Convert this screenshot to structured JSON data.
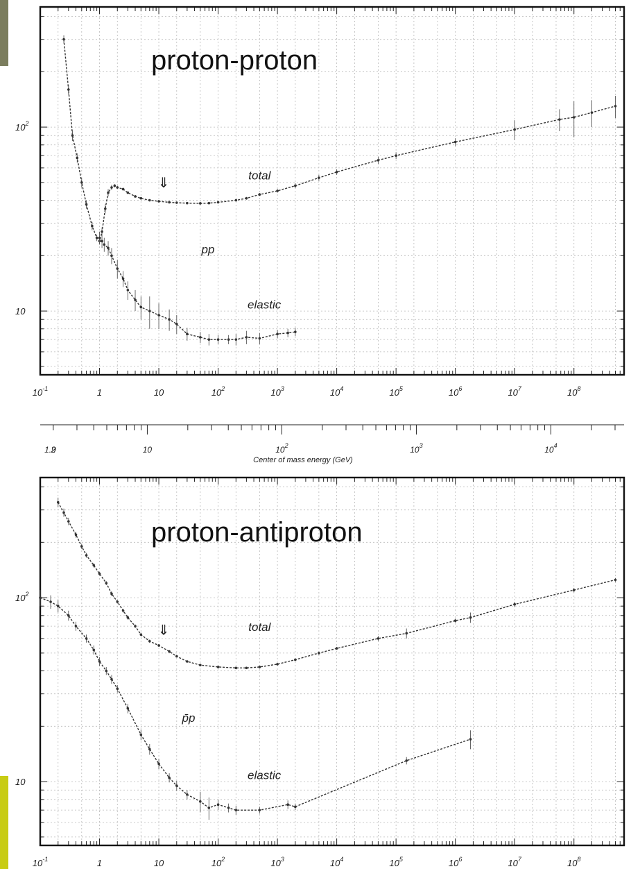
{
  "colors": {
    "sidebar_accent_top": "#7b7d5e",
    "sidebar_accent_bottom": "#c8cc14",
    "frame": "#111111",
    "points": "#333333"
  },
  "middle_axis": {
    "title": "Center of mass energy (GeV)",
    "ticks": [
      {
        "v": 1.9,
        "label": "1.9",
        "exp": ""
      },
      {
        "v": 2,
        "label": "2",
        "exp": ""
      },
      {
        "v": 10,
        "label": "10",
        "exp": ""
      },
      {
        "v": 100,
        "label": "10",
        "exp": "2"
      },
      {
        "v": 1000,
        "label": "10",
        "exp": "3"
      },
      {
        "v": 10000,
        "label": "10",
        "exp": "4"
      }
    ]
  },
  "chart_data": [
    {
      "type": "scatter",
      "title": "proton-proton",
      "panel_label": "pp",
      "x_scale": "log",
      "y_scale": "log",
      "xlim": [
        0.1,
        700000000
      ],
      "ylim": [
        4.5,
        450
      ],
      "x_ticks": [
        {
          "label": "10",
          "exp": "-1",
          "v": 0.1
        },
        {
          "label": "1",
          "exp": "",
          "v": 1
        },
        {
          "label": "10",
          "exp": "",
          "v": 10
        },
        {
          "label": "10",
          "exp": "2",
          "v": 100
        },
        {
          "label": "10",
          "exp": "3",
          "v": 1000
        },
        {
          "label": "10",
          "exp": "4",
          "v": 10000
        },
        {
          "label": "10",
          "exp": "5",
          "v": 100000
        },
        {
          "label": "10",
          "exp": "6",
          "v": 1000000
        },
        {
          "label": "10",
          "exp": "7",
          "v": 10000000
        },
        {
          "label": "10",
          "exp": "8",
          "v": 100000000
        }
      ],
      "y_ticks": [
        {
          "label": "10",
          "exp": "2",
          "v": 100
        },
        {
          "label": "10",
          "exp": "",
          "v": 10
        }
      ],
      "grid": true,
      "annotations": [
        {
          "text": "total",
          "x": 500,
          "y": 52
        },
        {
          "text": "elastic",
          "x": 600,
          "y": 10.3
        },
        {
          "text": "⇓",
          "x": 12,
          "y": 47
        }
      ],
      "series": [
        {
          "name": "total",
          "x": [
            0.25,
            0.3,
            0.35,
            0.42,
            0.5,
            0.6,
            0.75,
            0.9,
            1.0,
            1.1,
            1.25,
            1.4,
            1.6,
            1.8,
            2.0,
            2.5,
            3.0,
            4.0,
            5.0,
            7.0,
            10,
            15,
            20,
            30,
            50,
            70,
            100,
            200,
            300,
            500,
            1000,
            2000,
            5000,
            10000,
            50000,
            100000,
            1000000,
            10000000,
            57000000,
            100000000,
            200000000,
            500000000
          ],
          "y": [
            300,
            160,
            90,
            68,
            50,
            38,
            29,
            25,
            24,
            27,
            36,
            44,
            47,
            48,
            47,
            46,
            44,
            42,
            41,
            40,
            39.5,
            39,
            38.8,
            38.6,
            38.5,
            38.6,
            39,
            40,
            41,
            43,
            45,
            48,
            53,
            57,
            66,
            70,
            83,
            97,
            110,
            113,
            120,
            130
          ],
          "err": [
            15,
            10,
            6,
            4,
            3,
            2,
            1.5,
            1,
            1,
            1.5,
            2,
            2,
            1.5,
            1,
            1,
            0.8,
            0.7,
            0.6,
            0.6,
            0.5,
            0.5,
            0.5,
            0.5,
            0.5,
            0.5,
            0.5,
            0.5,
            0.6,
            0.7,
            0.8,
            1,
            1.5,
            2,
            2,
            3,
            3,
            4,
            12,
            15,
            25,
            20,
            18
          ]
        },
        {
          "name": "elastic",
          "x": [
            1.0,
            1.1,
            1.2,
            1.4,
            1.6,
            2.0,
            2.5,
            3.0,
            4.0,
            5.0,
            7.0,
            10,
            15,
            20,
            30,
            50,
            70,
            100,
            150,
            200,
            300,
            500,
            1000,
            1500,
            2000
          ],
          "y": [
            25,
            24,
            23,
            22,
            20,
            17,
            15,
            13,
            11.5,
            10.5,
            10,
            9.5,
            9,
            8.5,
            7.5,
            7.2,
            7.0,
            7.0,
            7.0,
            7.0,
            7.2,
            7.1,
            7.5,
            7.6,
            7.7
          ],
          "err": [
            2,
            2,
            2,
            2,
            2,
            2,
            1.5,
            1.5,
            1.5,
            1.5,
            2,
            1.5,
            1.2,
            1,
            0.6,
            0.5,
            0.5,
            0.4,
            0.4,
            0.5,
            0.6,
            0.5,
            0.4,
            0.4,
            0.4
          ]
        }
      ]
    },
    {
      "type": "scatter",
      "title": "proton-antiproton",
      "panel_label": "p̄p",
      "x_scale": "log",
      "y_scale": "log",
      "xlim": [
        0.1,
        700000000
      ],
      "ylim": [
        4.5,
        450
      ],
      "x_ticks": [
        {
          "label": "10",
          "exp": "-1",
          "v": 0.1
        },
        {
          "label": "1",
          "exp": "",
          "v": 1
        },
        {
          "label": "10",
          "exp": "",
          "v": 10
        },
        {
          "label": "10",
          "exp": "2",
          "v": 100
        },
        {
          "label": "10",
          "exp": "3",
          "v": 1000
        },
        {
          "label": "10",
          "exp": "4",
          "v": 10000
        },
        {
          "label": "10",
          "exp": "5",
          "v": 100000
        },
        {
          "label": "10",
          "exp": "6",
          "v": 1000000
        },
        {
          "label": "10",
          "exp": "7",
          "v": 10000000
        },
        {
          "label": "10",
          "exp": "8",
          "v": 100000000
        }
      ],
      "y_ticks": [
        {
          "label": "10",
          "exp": "2",
          "v": 100
        },
        {
          "label": "10",
          "exp": "",
          "v": 10
        }
      ],
      "grid": true,
      "annotations": [
        {
          "text": "total",
          "x": 500,
          "y": 66
        },
        {
          "text": "elastic",
          "x": 600,
          "y": 10.3
        },
        {
          "text": "⇓",
          "x": 12,
          "y": 63
        }
      ],
      "series": [
        {
          "name": "total",
          "x": [
            0.2,
            0.25,
            0.3,
            0.4,
            0.5,
            0.6,
            0.8,
            1.0,
            1.3,
            1.6,
            2.0,
            2.5,
            3.0,
            4.0,
            5.0,
            7.0,
            10,
            15,
            20,
            30,
            50,
            100,
            200,
            300,
            500,
            1000,
            2000,
            5000,
            10000,
            50000,
            150000,
            1000000,
            1800000,
            10000000,
            100000000,
            500000000
          ],
          "y": [
            330,
            290,
            260,
            220,
            190,
            170,
            150,
            135,
            120,
            105,
            95,
            85,
            78,
            70,
            63,
            58,
            55,
            51,
            48,
            45,
            43,
            42,
            41.5,
            41.5,
            42,
            43.5,
            46,
            50,
            53,
            60,
            64,
            75,
            78,
            92,
            110,
            125
          ],
          "err": [
            20,
            15,
            12,
            8,
            6,
            5,
            4,
            3,
            3,
            3,
            2,
            2,
            2,
            1.5,
            1.5,
            1.2,
            1,
            0.8,
            0.7,
            0.6,
            0.5,
            0.5,
            0.5,
            0.5,
            0.5,
            0.6,
            0.7,
            1,
            1,
            2,
            4,
            2,
            5,
            3,
            3,
            3
          ]
        },
        {
          "name": "elastic",
          "x": [
            0.1,
            0.15,
            0.2,
            0.3,
            0.4,
            0.6,
            0.8,
            1.0,
            1.3,
            1.6,
            2.0,
            3.0,
            5.0,
            7.0,
            10,
            15,
            20,
            30,
            50,
            70,
            100,
            150,
            200,
            500,
            1500,
            2000,
            150000,
            1800000
          ],
          "y": [
            100,
            95,
            90,
            80,
            70,
            60,
            52,
            45,
            40,
            36,
            32,
            25,
            18,
            15,
            12.5,
            10.5,
            9.5,
            8.5,
            7.8,
            7.2,
            7.5,
            7.2,
            7.0,
            7.0,
            7.5,
            7.3,
            13,
            17
          ],
          "err": [
            10,
            8,
            7,
            5,
            4,
            3,
            3,
            2.5,
            2,
            2,
            1.5,
            1.5,
            1.2,
            1,
            0.8,
            0.6,
            0.6,
            0.5,
            1,
            1,
            0.5,
            0.4,
            0.4,
            0.3,
            0.4,
            0.3,
            0.6,
            2
          ]
        }
      ]
    }
  ]
}
